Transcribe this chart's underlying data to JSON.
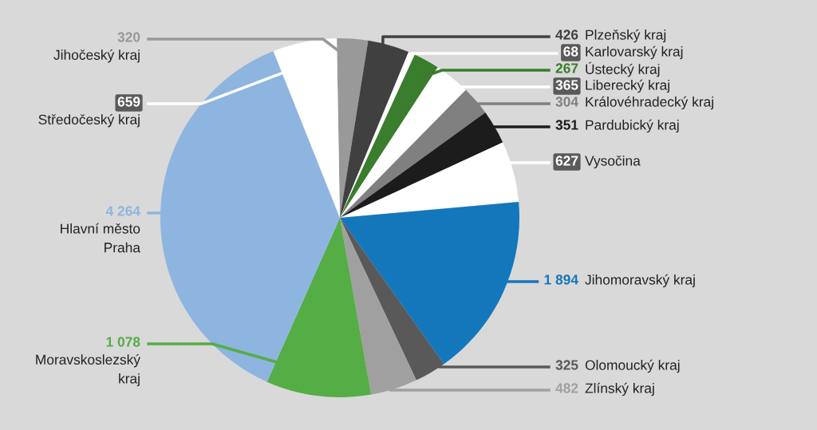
{
  "chart_data": {
    "type": "pie",
    "categories": [
      "Jihočeský kraj",
      "Plzeňský kraj",
      "Karlovarský kraj",
      "Ústecký kraj",
      "Liberecký kraj",
      "Královéhradecký kraj",
      "Pardubický kraj",
      "Vysočina",
      "Jihomoravský kraj",
      "Olomoucký kraj",
      "Zlínský kraj",
      "Moravskoslezský\nkraj",
      "Hlavní město\nPraha",
      "Středočeský kraj"
    ],
    "values": [
      320,
      426,
      68,
      267,
      365,
      304,
      351,
      627,
      1894,
      325,
      482,
      1078,
      4264,
      659
    ],
    "colors": [
      "#999999",
      "#404040",
      "#ffffff",
      "#3a7d2c",
      "#ffffff",
      "#808080",
      "#1c1c1c",
      "#ffffff",
      "#1477bb",
      "#595959",
      "#a0a0a0",
      "#55ad45",
      "#8db5e0",
      "#ffffff"
    ],
    "data_labels": true,
    "legend": false
  }
}
